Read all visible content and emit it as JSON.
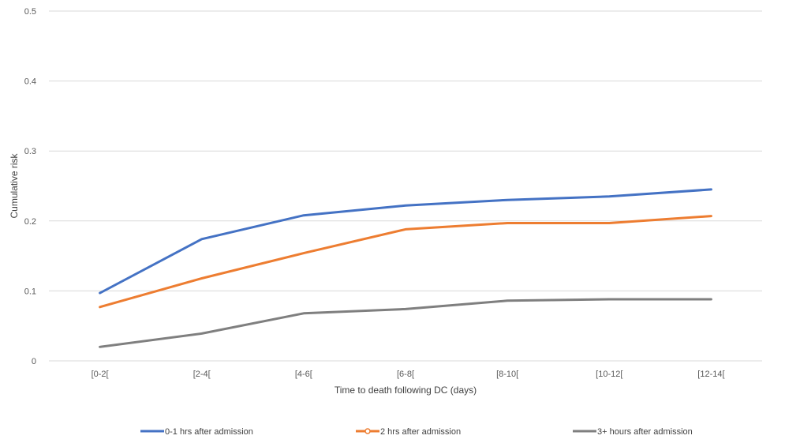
{
  "chart_data": {
    "type": "line",
    "title": "",
    "xlabel": "Time to death following DC (days)",
    "ylabel": "Cumulative risk",
    "categories": [
      "[0-2[",
      "[2-4[",
      "[4-6[",
      "[6-8[",
      "[8-10[",
      "[10-12[",
      "[12-14["
    ],
    "ylim": [
      0,
      0.5
    ],
    "yticks": [
      "0",
      "0.1",
      "0.2",
      "0.3",
      "0.4",
      "0.5"
    ],
    "grid": true,
    "legend_position": "bottom",
    "series": [
      {
        "name": "0-1 hrs after admission",
        "color": "#4472C4",
        "marker": "none",
        "values": [
          0.097,
          0.174,
          0.208,
          0.222,
          0.23,
          0.235,
          0.245
        ]
      },
      {
        "name": "2 hrs after admission",
        "color": "#ED7D31",
        "marker": "circle",
        "values": [
          0.077,
          0.118,
          0.154,
          0.188,
          0.197,
          0.197,
          0.207
        ]
      },
      {
        "name": "3+ hours after admission",
        "color": "#7F7F7F",
        "marker": "none",
        "values": [
          0.02,
          0.039,
          0.068,
          0.074,
          0.086,
          0.088,
          0.088
        ]
      }
    ]
  }
}
